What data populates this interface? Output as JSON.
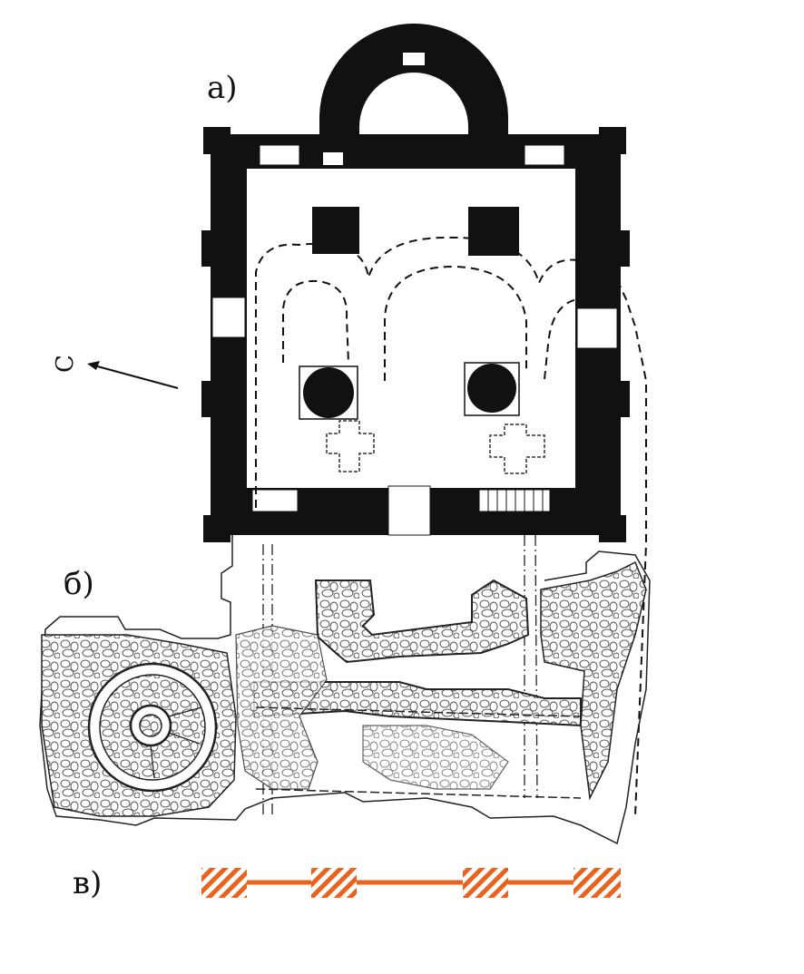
{
  "labels": {
    "plan_a": "а)",
    "plan_b": "б)",
    "scale": "в)",
    "north": "С"
  },
  "colors": {
    "walls": "#111111",
    "scale_bar": "#e8641e",
    "ink": "#333333"
  },
  "icons": {
    "north_arrow": "arrow-up-left-icon"
  },
  "scale_bar": {
    "hatched_segments": 4
  }
}
